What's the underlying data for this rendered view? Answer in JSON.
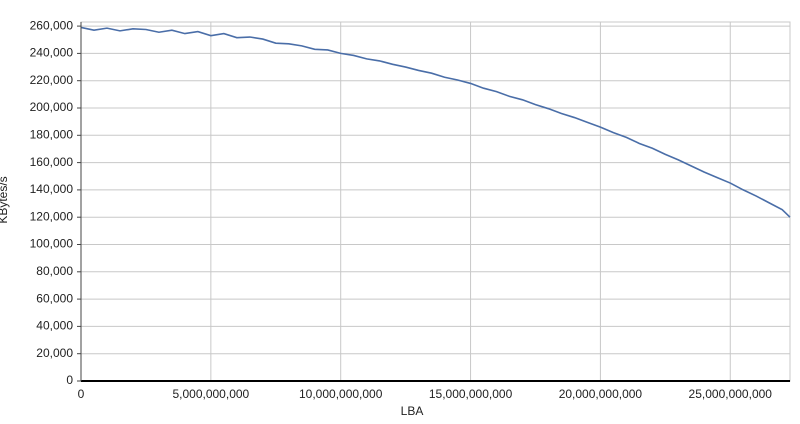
{
  "chart_data": {
    "type": "line",
    "x_label": "LBA",
    "y_label": "KBytes/s",
    "x": [
      0,
      500000000,
      1000000000,
      1500000000,
      2000000000,
      2500000000,
      3000000000,
      3500000000,
      4000000000,
      4500000000,
      5000000000,
      5500000000,
      6000000000,
      6500000000,
      7000000000,
      7500000000,
      8000000000,
      8500000000,
      9000000000,
      9500000000,
      10000000000,
      10500000000,
      11000000000,
      11500000000,
      12000000000,
      12500000000,
      13000000000,
      13500000000,
      14000000000,
      14500000000,
      15000000000,
      15500000000,
      16000000000,
      16500000000,
      17000000000,
      17500000000,
      18000000000,
      18500000000,
      19000000000,
      19500000000,
      20000000000,
      20500000000,
      21000000000,
      21500000000,
      22000000000,
      22500000000,
      23000000000,
      23500000000,
      24000000000,
      24500000000,
      25000000000,
      25500000000,
      26000000000,
      26500000000,
      27000000000,
      27300000000
    ],
    "values": [
      259000,
      257000,
      258500,
      256500,
      258000,
      257500,
      255500,
      257000,
      254500,
      256000,
      253000,
      254500,
      251500,
      252000,
      250500,
      247500,
      247000,
      245500,
      243000,
      242500,
      240000,
      238500,
      236000,
      234500,
      232000,
      230000,
      227500,
      225500,
      222500,
      220500,
      218000,
      214500,
      212000,
      208500,
      206000,
      202500,
      199500,
      196000,
      193000,
      189500,
      186000,
      182000,
      178500,
      174000,
      170500,
      166000,
      162000,
      157500,
      153000,
      149000,
      145000,
      140000,
      135500,
      130500,
      125500,
      120000
    ],
    "color": "#4a6ea8",
    "xlim": [
      0,
      27300000000
    ],
    "ylim": [
      0,
      263000
    ],
    "xticks": [
      0,
      {
        "value": 5000000000,
        "label": "5,000,000,000"
      },
      {
        "value": 10000000000,
        "label": "10,000,000,000"
      },
      {
        "value": 15000000000,
        "label": "15,000,000,000"
      },
      {
        "value": 20000000000,
        "label": "20,000,000,000"
      },
      {
        "value": 25000000000,
        "label": "25,000,000,000"
      }
    ],
    "yticks": [
      0,
      {
        "value": 20000,
        "label": "20,000"
      },
      {
        "value": 40000,
        "label": "40,000"
      },
      {
        "value": 60000,
        "label": "60,000"
      },
      {
        "value": 80000,
        "label": "80,000"
      },
      {
        "value": 100000,
        "label": "100,000"
      },
      {
        "value": 120000,
        "label": "120,000"
      },
      {
        "value": 140000,
        "label": "140,000"
      },
      {
        "value": 160000,
        "label": "160,000"
      },
      {
        "value": 180000,
        "label": "180,000"
      },
      {
        "value": 200000,
        "label": "200,000"
      },
      {
        "value": 220000,
        "label": "220,000"
      },
      {
        "value": 240000,
        "label": "240,000"
      },
      {
        "value": 260000,
        "label": "260,000"
      }
    ],
    "grid": true
  }
}
